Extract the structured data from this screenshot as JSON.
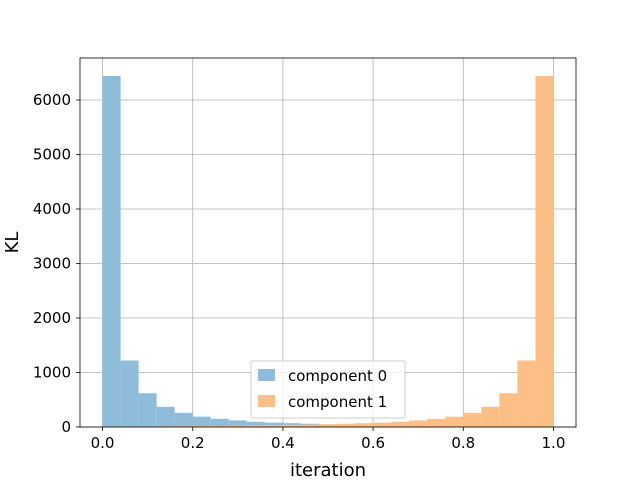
{
  "chart_data": {
    "type": "bar",
    "xlabel": "iteration",
    "ylabel": "KL",
    "xlim": [
      -0.05,
      1.05
    ],
    "ylim": [
      0,
      6770
    ],
    "xticks": [
      0.0,
      0.2,
      0.4,
      0.6,
      0.8,
      1.0
    ],
    "xtick_labels": [
      "0.0",
      "0.2",
      "0.4",
      "0.6",
      "0.8",
      "1.0"
    ],
    "yticks": [
      0,
      1000,
      2000,
      3000,
      4000,
      5000,
      6000
    ],
    "ytick_labels": [
      "0",
      "1000",
      "2000",
      "3000",
      "4000",
      "5000",
      "6000"
    ],
    "grid": true,
    "legend_position": "bottom-center",
    "bin_width": 0.04,
    "series": [
      {
        "name": "component 0",
        "color": "#8fbcdb",
        "bin_starts": [
          0.0,
          0.04,
          0.08,
          0.12,
          0.16,
          0.2,
          0.24,
          0.28,
          0.32,
          0.36,
          0.4,
          0.44,
          0.48,
          0.52,
          0.56,
          0.6,
          0.64,
          0.68,
          0.72,
          0.76,
          0.8,
          0.84,
          0.88,
          0.92,
          0.96
        ],
        "values": [
          6440,
          1220,
          620,
          370,
          260,
          190,
          150,
          120,
          95,
          80,
          70,
          60,
          50,
          45,
          40,
          35,
          30,
          25,
          20,
          18,
          15,
          12,
          10,
          8,
          5
        ]
      },
      {
        "name": "component 1",
        "color": "#fdbf86",
        "bin_starts": [
          0.0,
          0.04,
          0.08,
          0.12,
          0.16,
          0.2,
          0.24,
          0.28,
          0.32,
          0.36,
          0.4,
          0.44,
          0.48,
          0.52,
          0.56,
          0.6,
          0.64,
          0.68,
          0.72,
          0.76,
          0.8,
          0.84,
          0.88,
          0.92,
          0.96
        ],
        "values": [
          5,
          8,
          10,
          12,
          15,
          18,
          20,
          25,
          30,
          35,
          40,
          45,
          50,
          60,
          70,
          80,
          95,
          120,
          150,
          190,
          260,
          370,
          620,
          1220,
          6440
        ]
      }
    ]
  }
}
